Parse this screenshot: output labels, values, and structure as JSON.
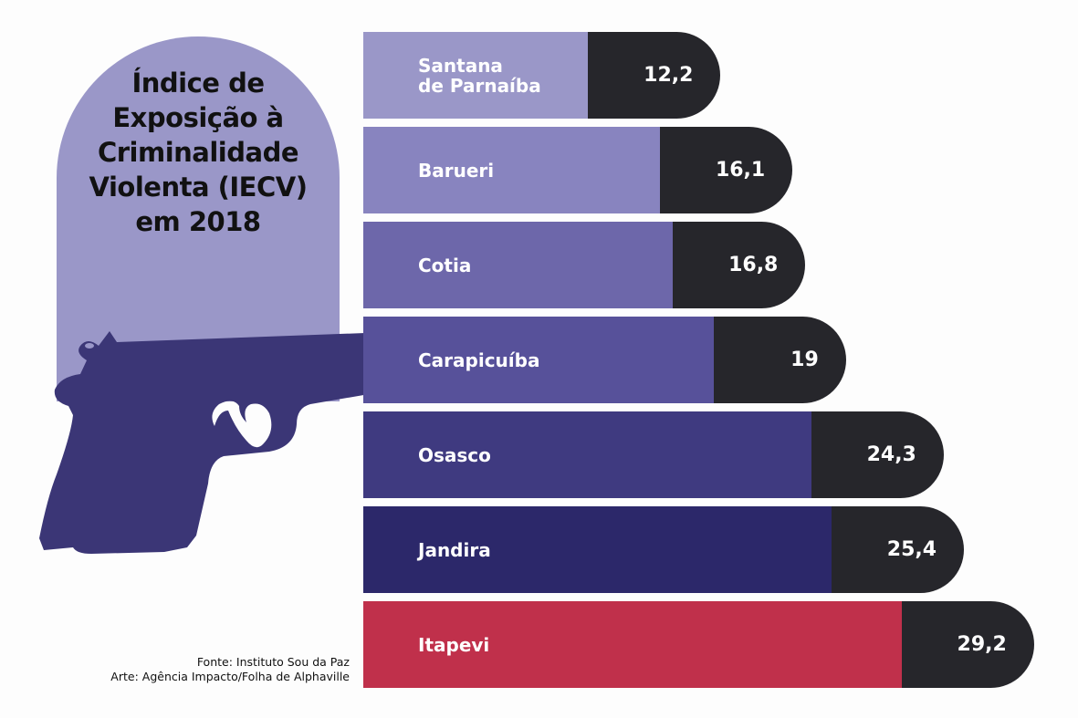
{
  "chart_data": {
    "type": "bar",
    "orientation": "horizontal",
    "title": "Índice de Exposição à Criminalidade Violenta (IECV) em 2018",
    "title_lines": [
      "Índice de",
      "Exposição à",
      "Criminalidade",
      "Violenta (IECV)",
      "em 2018"
    ],
    "categories": [
      "Santana de Parnaíba",
      "Barueri",
      "Cotia",
      "Carapicuíba",
      "Osasco",
      "Jandira",
      "Itapevi"
    ],
    "category_lines": [
      [
        "Santana",
        "de Parnaíba"
      ],
      [
        "Barueri"
      ],
      [
        "Cotia"
      ],
      [
        "Carapicuíba"
      ],
      [
        "Osasco"
      ],
      [
        "Jandira"
      ],
      [
        "Itapevi"
      ]
    ],
    "values": [
      12.2,
      16.1,
      16.8,
      19,
      24.3,
      25.4,
      29.2
    ],
    "value_labels": [
      "12,2",
      "16,1",
      "16,8",
      "19",
      "24,3",
      "25,4",
      "29,2"
    ],
    "colors": [
      "#9a97c8",
      "#8884bf",
      "#6d67aa",
      "#57519a",
      "#3f3a80",
      "#2c286a",
      "#c0304b"
    ],
    "value_pill_color": "#26262b",
    "grid": false
  },
  "decoration": {
    "icon": "pistol-icon",
    "color": "#3b3676"
  },
  "credits": {
    "source": "Fonte: Instituto Sou da Paz",
    "art": "Arte: Agência Impacto/Folha de Alphaville"
  }
}
